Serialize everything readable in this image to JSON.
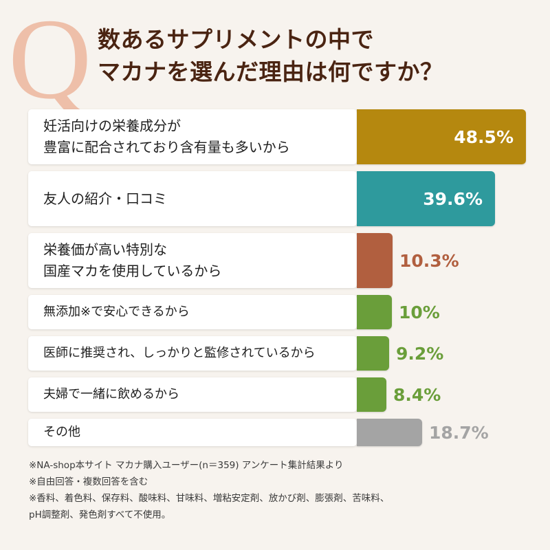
{
  "question": {
    "mark": "Q",
    "title_line1": "数あるサプリメントの中で",
    "title_line2": "マカナを選んだ理由は何ですか？"
  },
  "chart_data": {
    "type": "bar",
    "orientation": "horizontal",
    "categories": [
      "妊活向けの栄養成分が\n豊富に配合されており含有量も多いから",
      "友人の紹介・口コミ",
      "栄養価が高い特別な\n国産マカを使用しているから",
      "無添加※で安心できるから",
      "医師に推奨され、しっかりと監修されているから",
      "夫婦で一緒に飲めるから",
      "その他"
    ],
    "values": [
      48.5,
      39.6,
      10.3,
      10,
      9.2,
      8.4,
      18.7
    ],
    "value_labels": [
      "48.5%",
      "39.6%",
      "10.3%",
      "10%",
      "9.2%",
      "8.4%",
      "18.7%"
    ],
    "colors": [
      "#b5880f",
      "#2e9a9d",
      "#b15f3f",
      "#6a9e3a",
      "#6a9e3a",
      "#6a9e3a",
      "#a4a4a4"
    ],
    "title": "",
    "xlabel": "",
    "ylabel": ""
  },
  "footnotes": [
    "※NA-shop本サイト マカナ購入ユーザー(n＝359) アンケート集計結果より",
    "※自由回答・複数回答を含む",
    "※香料、着色料、保存料、酸味料、甘味料、増粘安定剤、放かび剤、膨張剤、苦味料、",
    "pH調整剤、発色剤すべて不使用。"
  ]
}
